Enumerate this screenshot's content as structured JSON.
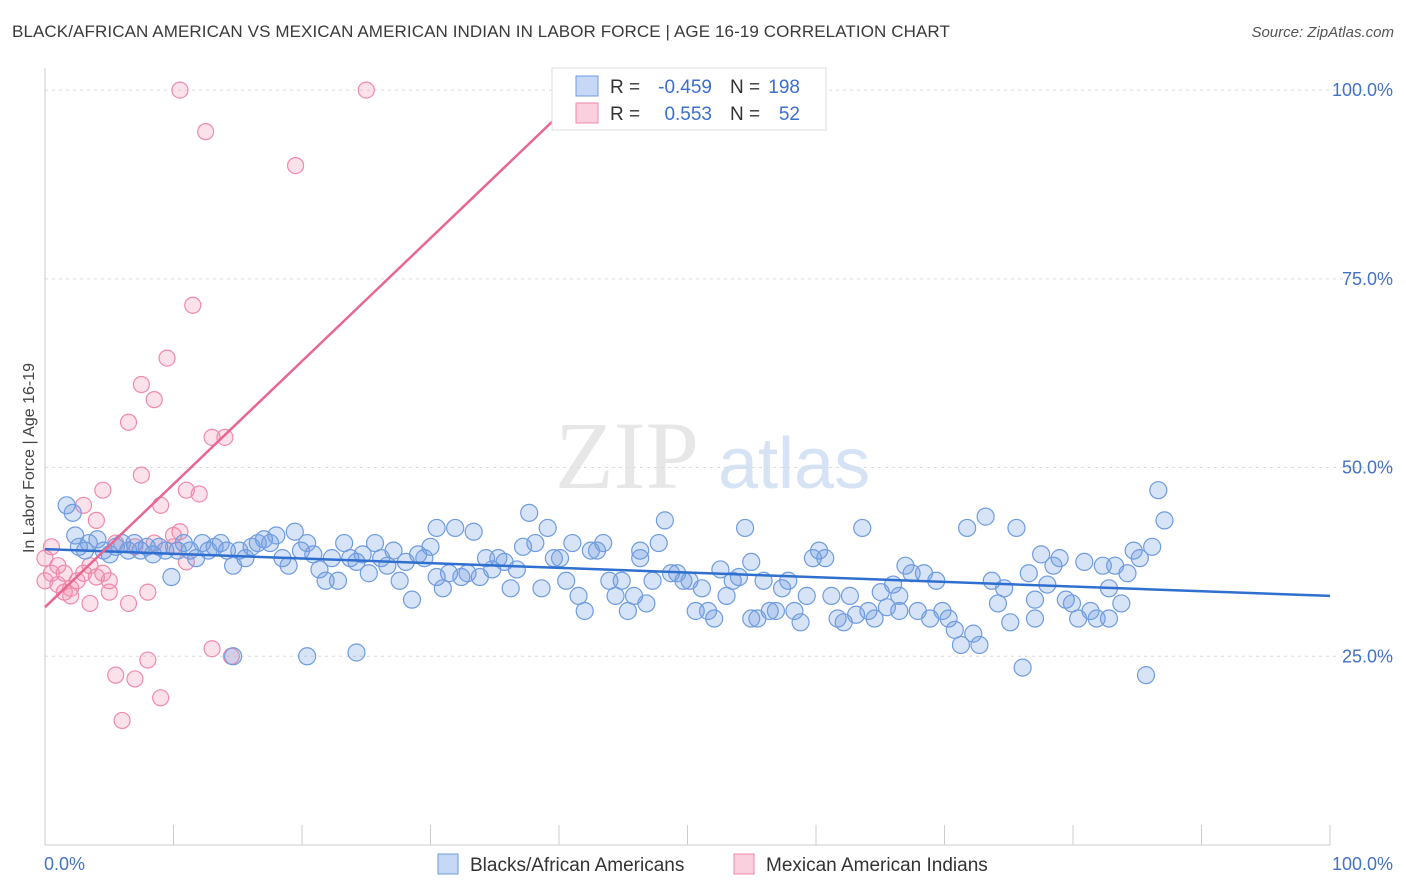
{
  "title": "BLACK/AFRICAN AMERICAN VS MEXICAN AMERICAN INDIAN IN LABOR FORCE | AGE 16-19 CORRELATION CHART",
  "source": "Source: ZipAtlas.com",
  "watermark": {
    "zip": "ZIP",
    "atlas": "atlas"
  },
  "legend": {
    "r_label": "R =",
    "n_label": "N =",
    "blue": {
      "r": "-0.459",
      "n": "198"
    },
    "pink": {
      "r": "0.553",
      "n": "52"
    }
  },
  "bottom_legend": {
    "blue": "Blacks/African Americans",
    "pink": "Mexican American Indians"
  },
  "colors": {
    "blue": "#6f9ce0",
    "blue_line": "#2f6fcf",
    "pink": "#f08aab",
    "pink_line": "#e8678f"
  },
  "chart_data": {
    "type": "scatter",
    "title": "BLACK/AFRICAN AMERICAN VS MEXICAN AMERICAN INDIAN IN LABOR FORCE | AGE 16-19 CORRELATION CHART",
    "xlabel": "",
    "ylabel": "In Labor Force | Age 16-19",
    "xlim": [
      0,
      100
    ],
    "ylim": [
      0,
      102
    ],
    "x_tick_labels": [
      "0.0%",
      "100.0%"
    ],
    "y_tick_labels": [
      {
        "value": 25,
        "label": "25.0%"
      },
      {
        "value": 50,
        "label": "50.0%"
      },
      {
        "value": 75,
        "label": "75.0%"
      },
      {
        "value": 100,
        "label": "100.0%"
      }
    ],
    "series": [
      {
        "name": "Blacks/African Americans",
        "color": "#6f9ce0",
        "r": -0.459,
        "n": 198,
        "trend": {
          "x": [
            0,
            100
          ],
          "y": [
            39.2,
            33.0
          ]
        },
        "points": [
          [
            0.5,
            45
          ],
          [
            1,
            44
          ],
          [
            1.2,
            41
          ],
          [
            1.5,
            39.5
          ],
          [
            2,
            39
          ],
          [
            2.3,
            40
          ],
          [
            3,
            40.5
          ],
          [
            3.5,
            39
          ],
          [
            4,
            38.5
          ],
          [
            4.5,
            39.5
          ],
          [
            5,
            40
          ],
          [
            5.5,
            39
          ],
          [
            6,
            40
          ],
          [
            6.5,
            39
          ],
          [
            7,
            39.5
          ],
          [
            7.5,
            38.5
          ],
          [
            8,
            39.5
          ],
          [
            8.5,
            39
          ],
          [
            9,
            35.5
          ],
          [
            9.5,
            39
          ],
          [
            10,
            40
          ],
          [
            10.5,
            39
          ],
          [
            11,
            38
          ],
          [
            11.5,
            40
          ],
          [
            12,
            39
          ],
          [
            12.5,
            39.5
          ],
          [
            13,
            40
          ],
          [
            13.5,
            39
          ],
          [
            14,
            37
          ],
          [
            14.5,
            39
          ],
          [
            15,
            38
          ],
          [
            15.5,
            39.5
          ],
          [
            16,
            40
          ],
          [
            16.5,
            40.5
          ],
          [
            17,
            40
          ],
          [
            17.5,
            41
          ],
          [
            18,
            38
          ],
          [
            18.5,
            37
          ],
          [
            19,
            41.5
          ],
          [
            19.5,
            39
          ],
          [
            20,
            40
          ],
          [
            20.5,
            38.5
          ],
          [
            21,
            36.5
          ],
          [
            21.5,
            35
          ],
          [
            22,
            38
          ],
          [
            22.5,
            35
          ],
          [
            23,
            40
          ],
          [
            23.5,
            38
          ],
          [
            24,
            37.5
          ],
          [
            24.5,
            38.5
          ],
          [
            25,
            36
          ],
          [
            25.5,
            40
          ],
          [
            26,
            38
          ],
          [
            26.5,
            37
          ],
          [
            27,
            39
          ],
          [
            27.5,
            35
          ],
          [
            28,
            37.5
          ],
          [
            28.5,
            32.5
          ],
          [
            29,
            38.5
          ],
          [
            29.5,
            38
          ],
          [
            30,
            39.5
          ],
          [
            30.5,
            35.5
          ],
          [
            31,
            34
          ],
          [
            31.5,
            36
          ],
          [
            32,
            42
          ],
          [
            32.5,
            35.5
          ],
          [
            33,
            36
          ],
          [
            33.5,
            41.5
          ],
          [
            34,
            35.5
          ],
          [
            34.5,
            38
          ],
          [
            35,
            36.5
          ],
          [
            35.5,
            38
          ],
          [
            36,
            37.5
          ],
          [
            36.5,
            34
          ],
          [
            37,
            36.5
          ],
          [
            37.5,
            39.5
          ],
          [
            38,
            44
          ],
          [
            38.5,
            40
          ],
          [
            39,
            34
          ],
          [
            39.5,
            42
          ],
          [
            40,
            38
          ],
          [
            40.5,
            38
          ],
          [
            41,
            35
          ],
          [
            41.5,
            40
          ],
          [
            42,
            33
          ],
          [
            42.5,
            31
          ],
          [
            43,
            39
          ],
          [
            43.5,
            39
          ],
          [
            44,
            40
          ],
          [
            44.5,
            35
          ],
          [
            45,
            33
          ],
          [
            45.5,
            35
          ],
          [
            46,
            31
          ],
          [
            46.5,
            33
          ],
          [
            47,
            39
          ],
          [
            47.5,
            32
          ],
          [
            48,
            35
          ],
          [
            48.5,
            40
          ],
          [
            49,
            43
          ],
          [
            49.5,
            36
          ],
          [
            50,
            36
          ],
          [
            50.5,
            35
          ],
          [
            51,
            35
          ],
          [
            51.5,
            31
          ],
          [
            52,
            34
          ],
          [
            52.5,
            31
          ],
          [
            53,
            30
          ],
          [
            53.5,
            36.5
          ],
          [
            54,
            33
          ],
          [
            54.5,
            35
          ],
          [
            55,
            35.5
          ],
          [
            55.5,
            42
          ],
          [
            56,
            30
          ],
          [
            56.5,
            30
          ],
          [
            57,
            35
          ],
          [
            57.5,
            31
          ],
          [
            58,
            31
          ],
          [
            58.5,
            34
          ],
          [
            59,
            35
          ],
          [
            59.5,
            31
          ],
          [
            60,
            29.5
          ],
          [
            60.5,
            33
          ],
          [
            61,
            38
          ],
          [
            61.5,
            39
          ],
          [
            62,
            38
          ],
          [
            62.5,
            33
          ],
          [
            63,
            30
          ],
          [
            63.5,
            29.5
          ],
          [
            64,
            33
          ],
          [
            64.5,
            30.5
          ],
          [
            65,
            42
          ],
          [
            65.5,
            31
          ],
          [
            66,
            30
          ],
          [
            66.5,
            33.5
          ],
          [
            67,
            31.5
          ],
          [
            67.5,
            34.5
          ],
          [
            68,
            33
          ],
          [
            68.5,
            37
          ],
          [
            69,
            36
          ],
          [
            69.5,
            31
          ],
          [
            70,
            36
          ],
          [
            70.5,
            30
          ],
          [
            71,
            35
          ],
          [
            71.5,
            31
          ],
          [
            72,
            30
          ],
          [
            72.5,
            28.5
          ],
          [
            73,
            26.5
          ],
          [
            73.5,
            42
          ],
          [
            74,
            28
          ],
          [
            74.5,
            26.5
          ],
          [
            75,
            43.5
          ],
          [
            75.5,
            35
          ],
          [
            76,
            32
          ],
          [
            76.5,
            34
          ],
          [
            77,
            29.5
          ],
          [
            77.5,
            42
          ],
          [
            78,
            23.5
          ],
          [
            78.5,
            36
          ],
          [
            79,
            32.5
          ],
          [
            79.5,
            38.5
          ],
          [
            80,
            34.5
          ],
          [
            80.5,
            37
          ],
          [
            81,
            38
          ],
          [
            81.5,
            32.5
          ],
          [
            82,
            32
          ],
          [
            82.5,
            30
          ],
          [
            83,
            37.5
          ],
          [
            83.5,
            31
          ],
          [
            84,
            30
          ],
          [
            84.5,
            37
          ],
          [
            85,
            34
          ],
          [
            85.5,
            37
          ],
          [
            86,
            32
          ],
          [
            86.5,
            36
          ],
          [
            87,
            39
          ],
          [
            87.5,
            38
          ],
          [
            88,
            22.5
          ],
          [
            88.5,
            39.5
          ],
          [
            89,
            47
          ],
          [
            89.5,
            43
          ],
          [
            14,
            25
          ],
          [
            20,
            25
          ],
          [
            24,
            25.5
          ],
          [
            30.5,
            42
          ],
          [
            47,
            38
          ],
          [
            56,
            37.5
          ],
          [
            68,
            31
          ],
          [
            79,
            30
          ],
          [
            85,
            30
          ]
        ]
      },
      {
        "name": "Mexican American Indians",
        "color": "#f08aab",
        "r": 0.553,
        "n": 52,
        "trend": {
          "x": [
            0,
            40.5
          ],
          "y": [
            31.5,
            97.5
          ]
        },
        "points": [
          [
            0,
            38
          ],
          [
            0.5,
            36
          ],
          [
            1,
            34.5
          ],
          [
            1.5,
            36
          ],
          [
            2,
            34
          ],
          [
            2.5,
            35
          ],
          [
            3,
            36
          ],
          [
            3,
            45
          ],
          [
            3.5,
            37
          ],
          [
            3.5,
            32
          ],
          [
            4,
            35.5
          ],
          [
            4,
            43
          ],
          [
            4.5,
            36
          ],
          [
            4.5,
            47
          ],
          [
            5,
            35
          ],
          [
            5,
            33.5
          ],
          [
            5.5,
            40
          ],
          [
            5.5,
            22.5
          ],
          [
            6,
            16.5
          ],
          [
            6.5,
            32
          ],
          [
            6.5,
            56
          ],
          [
            7,
            22
          ],
          [
            7,
            39.5
          ],
          [
            7.5,
            61
          ],
          [
            7.5,
            49
          ],
          [
            8,
            33.5
          ],
          [
            8,
            24.5
          ],
          [
            8.5,
            59
          ],
          [
            8.5,
            40
          ],
          [
            9,
            45
          ],
          [
            9,
            19.5
          ],
          [
            9.5,
            64.5
          ],
          [
            10,
            41
          ],
          [
            10,
            39.5
          ],
          [
            10.5,
            100
          ],
          [
            10.5,
            41.5
          ],
          [
            11,
            47
          ],
          [
            11,
            37.5
          ],
          [
            11.5,
            71.5
          ],
          [
            12,
            46.5
          ],
          [
            12.5,
            94.5
          ],
          [
            13,
            26
          ],
          [
            13,
            54
          ],
          [
            14,
            54
          ],
          [
            14.5,
            25
          ],
          [
            19.5,
            90
          ],
          [
            25,
            100
          ],
          [
            0,
            35
          ],
          [
            0.5,
            39.5
          ],
          [
            1,
            37
          ],
          [
            1.5,
            33.5
          ],
          [
            2,
            33
          ]
        ]
      }
    ]
  }
}
